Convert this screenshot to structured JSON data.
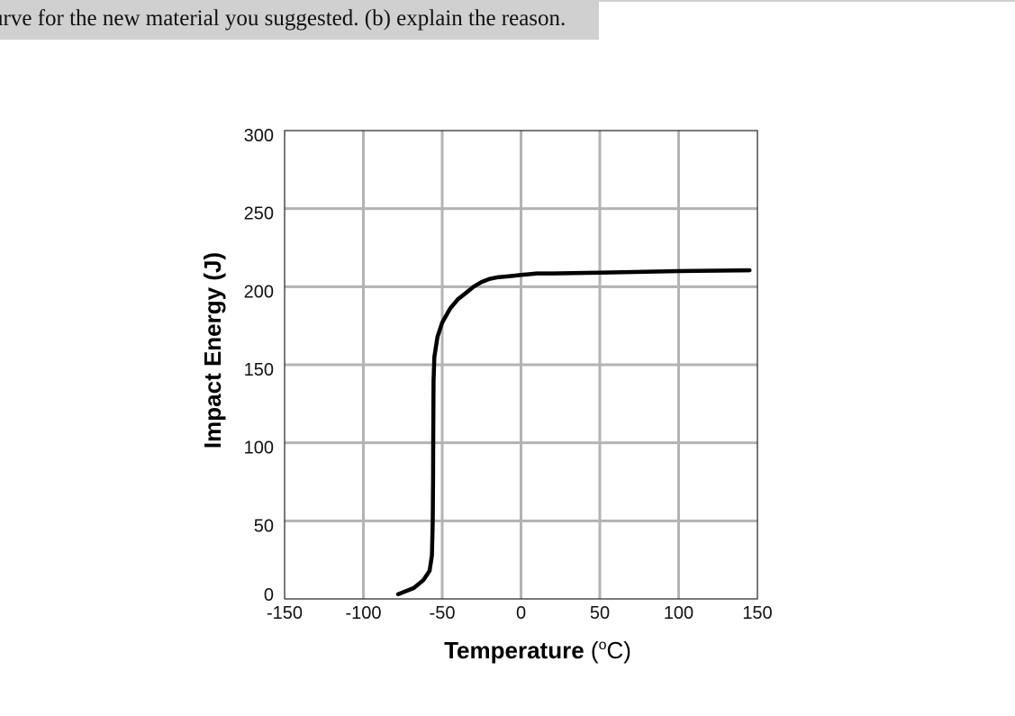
{
  "question": {
    "text": "urve for the new material you suggested. (b) explain the reason."
  },
  "chart_data": {
    "type": "line",
    "title": "",
    "xlabel_bold": "Temperature",
    "xlabel_unit": "(°C)",
    "ylabel": "Impact Energy (J)",
    "xlim": [
      -150,
      150
    ],
    "ylim": [
      0,
      300
    ],
    "xticks": [
      -150,
      -100,
      -50,
      0,
      50,
      100,
      150
    ],
    "yticks": [
      0,
      50,
      100,
      150,
      200,
      250,
      300
    ],
    "xtick_labels": [
      "-150",
      "-100",
      "-50",
      "0",
      "50",
      "100",
      "150"
    ],
    "ytick_labels": [
      "0",
      "50",
      "100",
      "150",
      "200",
      "250",
      "300"
    ],
    "grid": true,
    "series": [
      {
        "x": [
          -78,
          -68,
          -62,
          -58,
          -56.5,
          -56,
          -55.8,
          -55.7,
          -55.6,
          -55.5,
          -55,
          -53,
          -50,
          -45,
          -40,
          -35,
          -30,
          -25,
          -20,
          -15,
          -10,
          -5,
          0,
          5,
          10,
          20,
          50,
          100,
          145
        ],
        "y": [
          3,
          7,
          12,
          18,
          28,
          50,
          80,
          100,
          120,
          140,
          155,
          168,
          177,
          186,
          192,
          196,
          200,
          203,
          205,
          206,
          206.5,
          207,
          207.5,
          208,
          208.5,
          208.5,
          209,
          210,
          210.5
        ],
        "color": "#000000"
      }
    ],
    "colors": {
      "grid": "#b3b3b3",
      "frame": "#222222",
      "line": "#000000"
    }
  }
}
